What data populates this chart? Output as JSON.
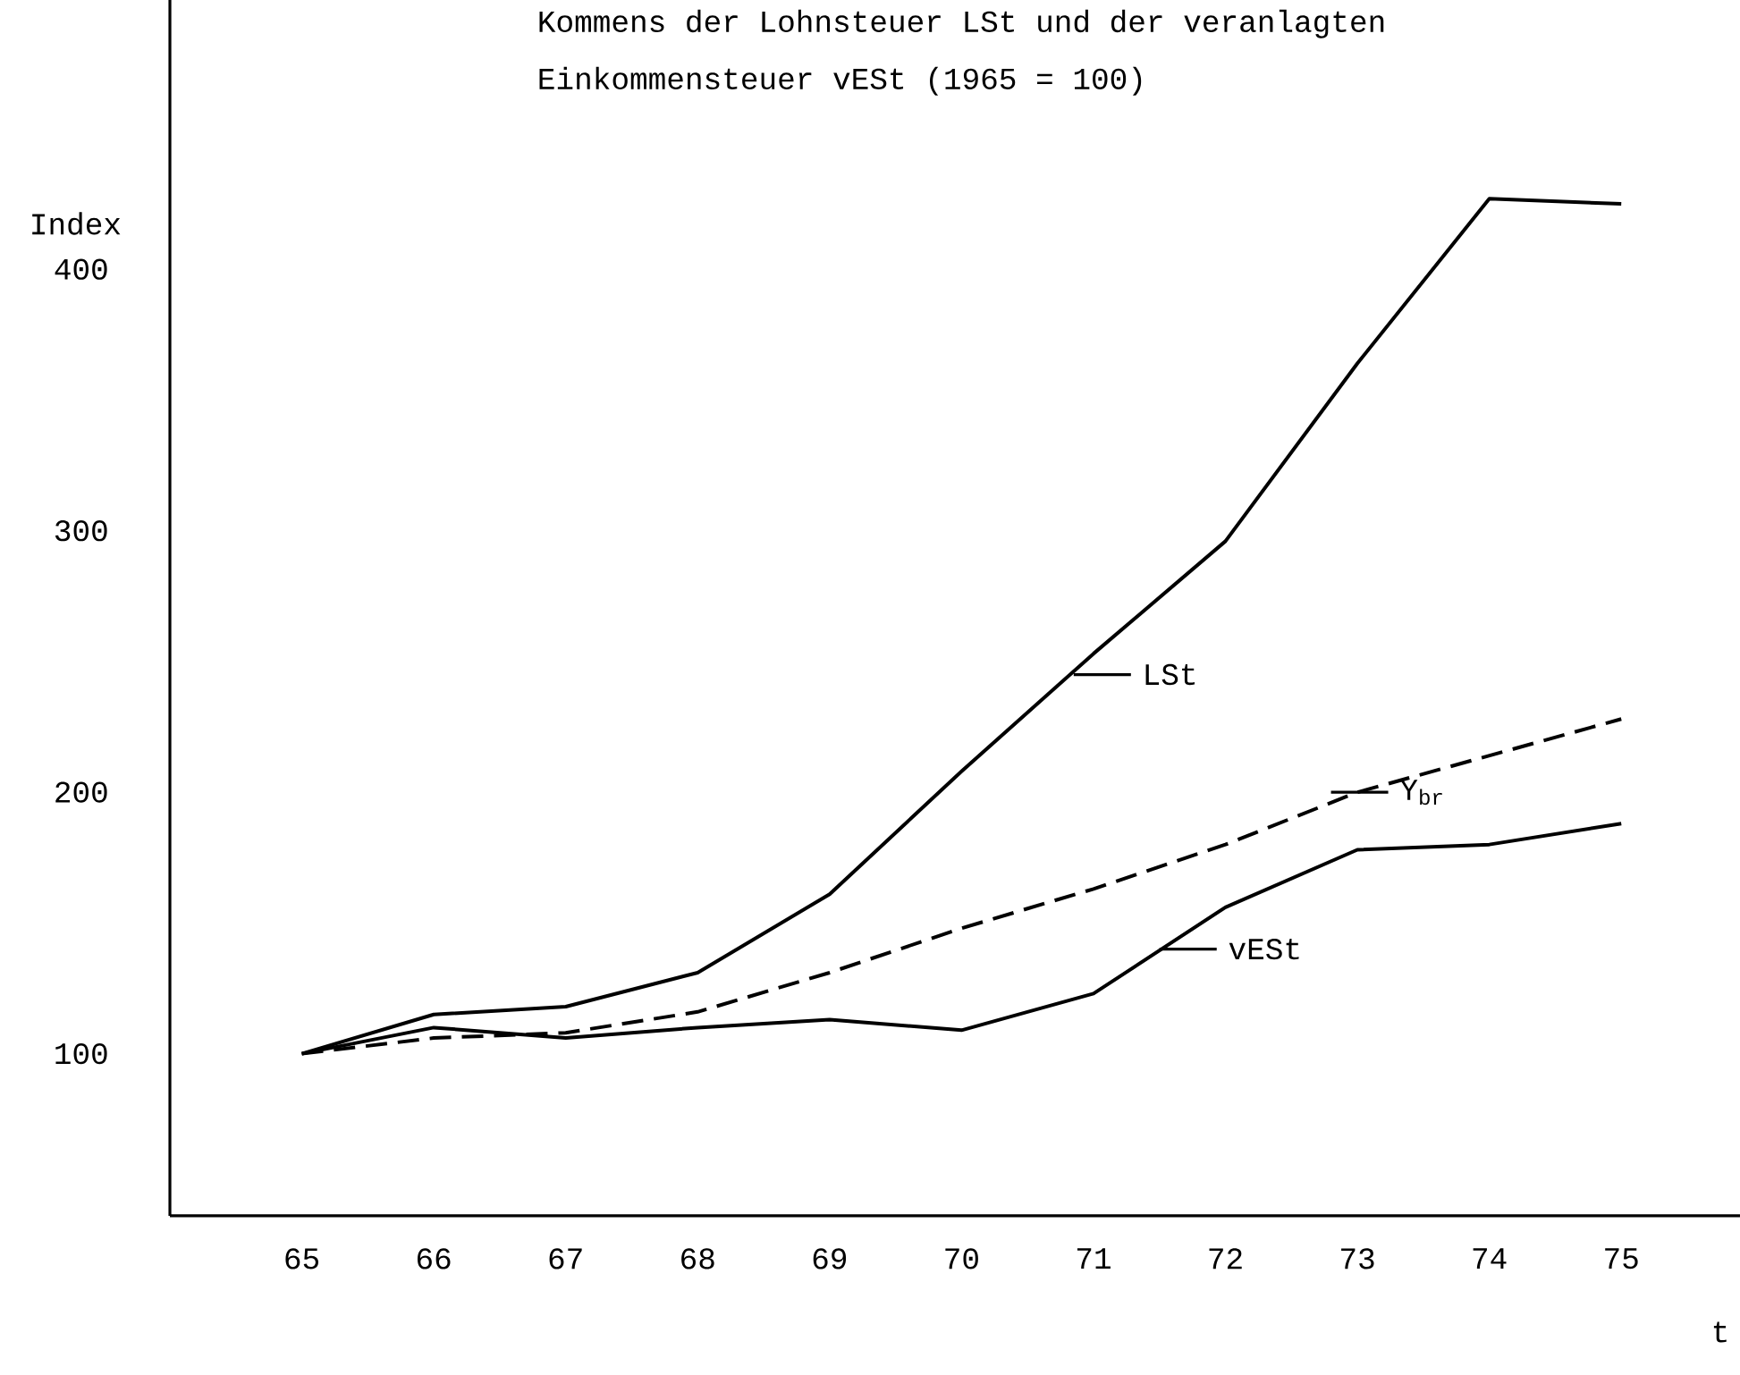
{
  "chart_data": {
    "type": "line",
    "title": "Kommens der Lohnsteuer LSt und der veranlagten",
    "subtitle": "Einkommensteuer vESt (1965 = 100)",
    "ylabel": "Index",
    "xlabel": "t",
    "x": [
      65,
      66,
      67,
      68,
      69,
      70,
      71,
      72,
      73,
      74,
      75
    ],
    "series": [
      {
        "color": "#000000",
        "line_style": "solid",
        "values": [
          100,
          115,
          118,
          131,
          161,
          208,
          253,
          296,
          364,
          427,
          425
        ]
      },
      {
        "color": "#000000",
        "line_style": "dashed",
        "values": [
          100,
          106,
          108,
          116,
          131,
          148,
          163,
          180,
          200,
          214,
          228
        ]
      },
      {
        "color": "#000000",
        "line_style": "solid",
        "values": [
          100,
          110,
          106,
          110,
          113,
          109,
          123,
          156,
          178,
          180,
          188
        ]
      }
    ],
    "xlim": [
      64,
      75.9
    ],
    "ylim": [
      38,
      503
    ],
    "xticks": [
      65,
      66,
      67,
      68,
      69,
      70,
      71,
      72,
      73,
      74,
      75
    ],
    "yticks": [
      100,
      200,
      300,
      400
    ],
    "marker": "none",
    "annotations": [
      {
        "text": "LSt",
        "x": 70.85,
        "y": 245
      },
      {
        "text": "Y$_{br}$",
        "x": 72.8,
        "y": 200
      },
      {
        "text": "vESt",
        "x": 71.5,
        "y": 140
      }
    ]
  }
}
